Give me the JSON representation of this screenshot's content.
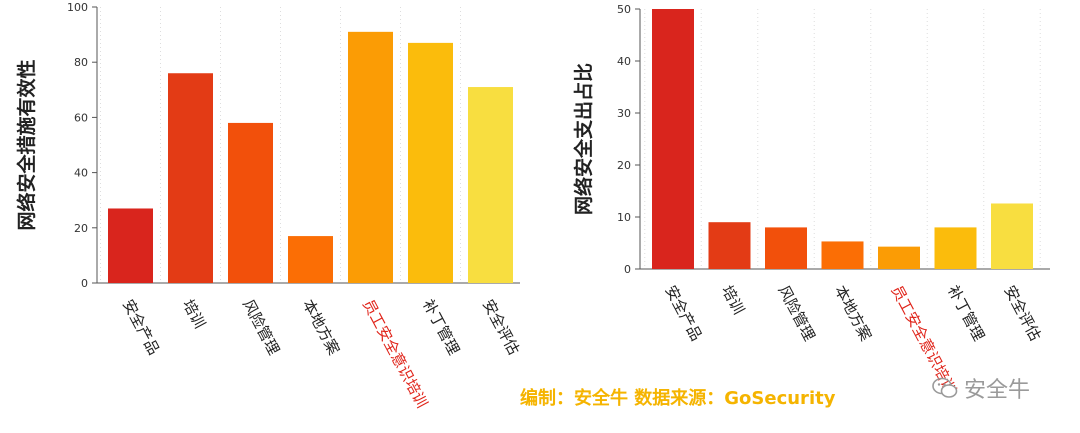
{
  "chart_data": [
    {
      "type": "bar",
      "ylabel": "网络安全措施有效性",
      "categories": [
        "安全产品",
        "培训",
        "风险管理",
        "本地方案",
        "员工安全意识培训",
        "补丁管理",
        "安全评估"
      ],
      "values": [
        27,
        76,
        58,
        17,
        91,
        87,
        71
      ],
      "ylim": [
        0,
        100
      ],
      "yticks": [
        0,
        20,
        40,
        60,
        80,
        100
      ],
      "highlight_category": "员工安全意识培训",
      "grid": "vertical dotted"
    },
    {
      "type": "bar",
      "ylabel": "网络安全支出占比",
      "categories": [
        "安全产品",
        "培训",
        "风险管理",
        "本地方案",
        "员工安全意识培训",
        "补丁管理",
        "安全评估"
      ],
      "values": [
        50,
        9,
        8,
        5.3,
        4.3,
        8,
        12.6
      ],
      "ylim": [
        0,
        50
      ],
      "yticks": [
        0,
        10,
        20,
        30,
        40,
        50
      ],
      "highlight_category": "员工安全意识培训",
      "grid": "vertical dotted"
    }
  ],
  "colors": {
    "bars": [
      "#d9251d",
      "#e33b15",
      "#f2500b",
      "#fb6e05",
      "#fb9c05",
      "#fbbc0c",
      "#f8de40"
    ],
    "highlight_text": "#e0241a",
    "credit": "#f5b400"
  },
  "credit": "编制：安全牛    数据来源：GoSecurity",
  "watermark": {
    "icon": "wechat-icon",
    "text": "安全牛"
  }
}
